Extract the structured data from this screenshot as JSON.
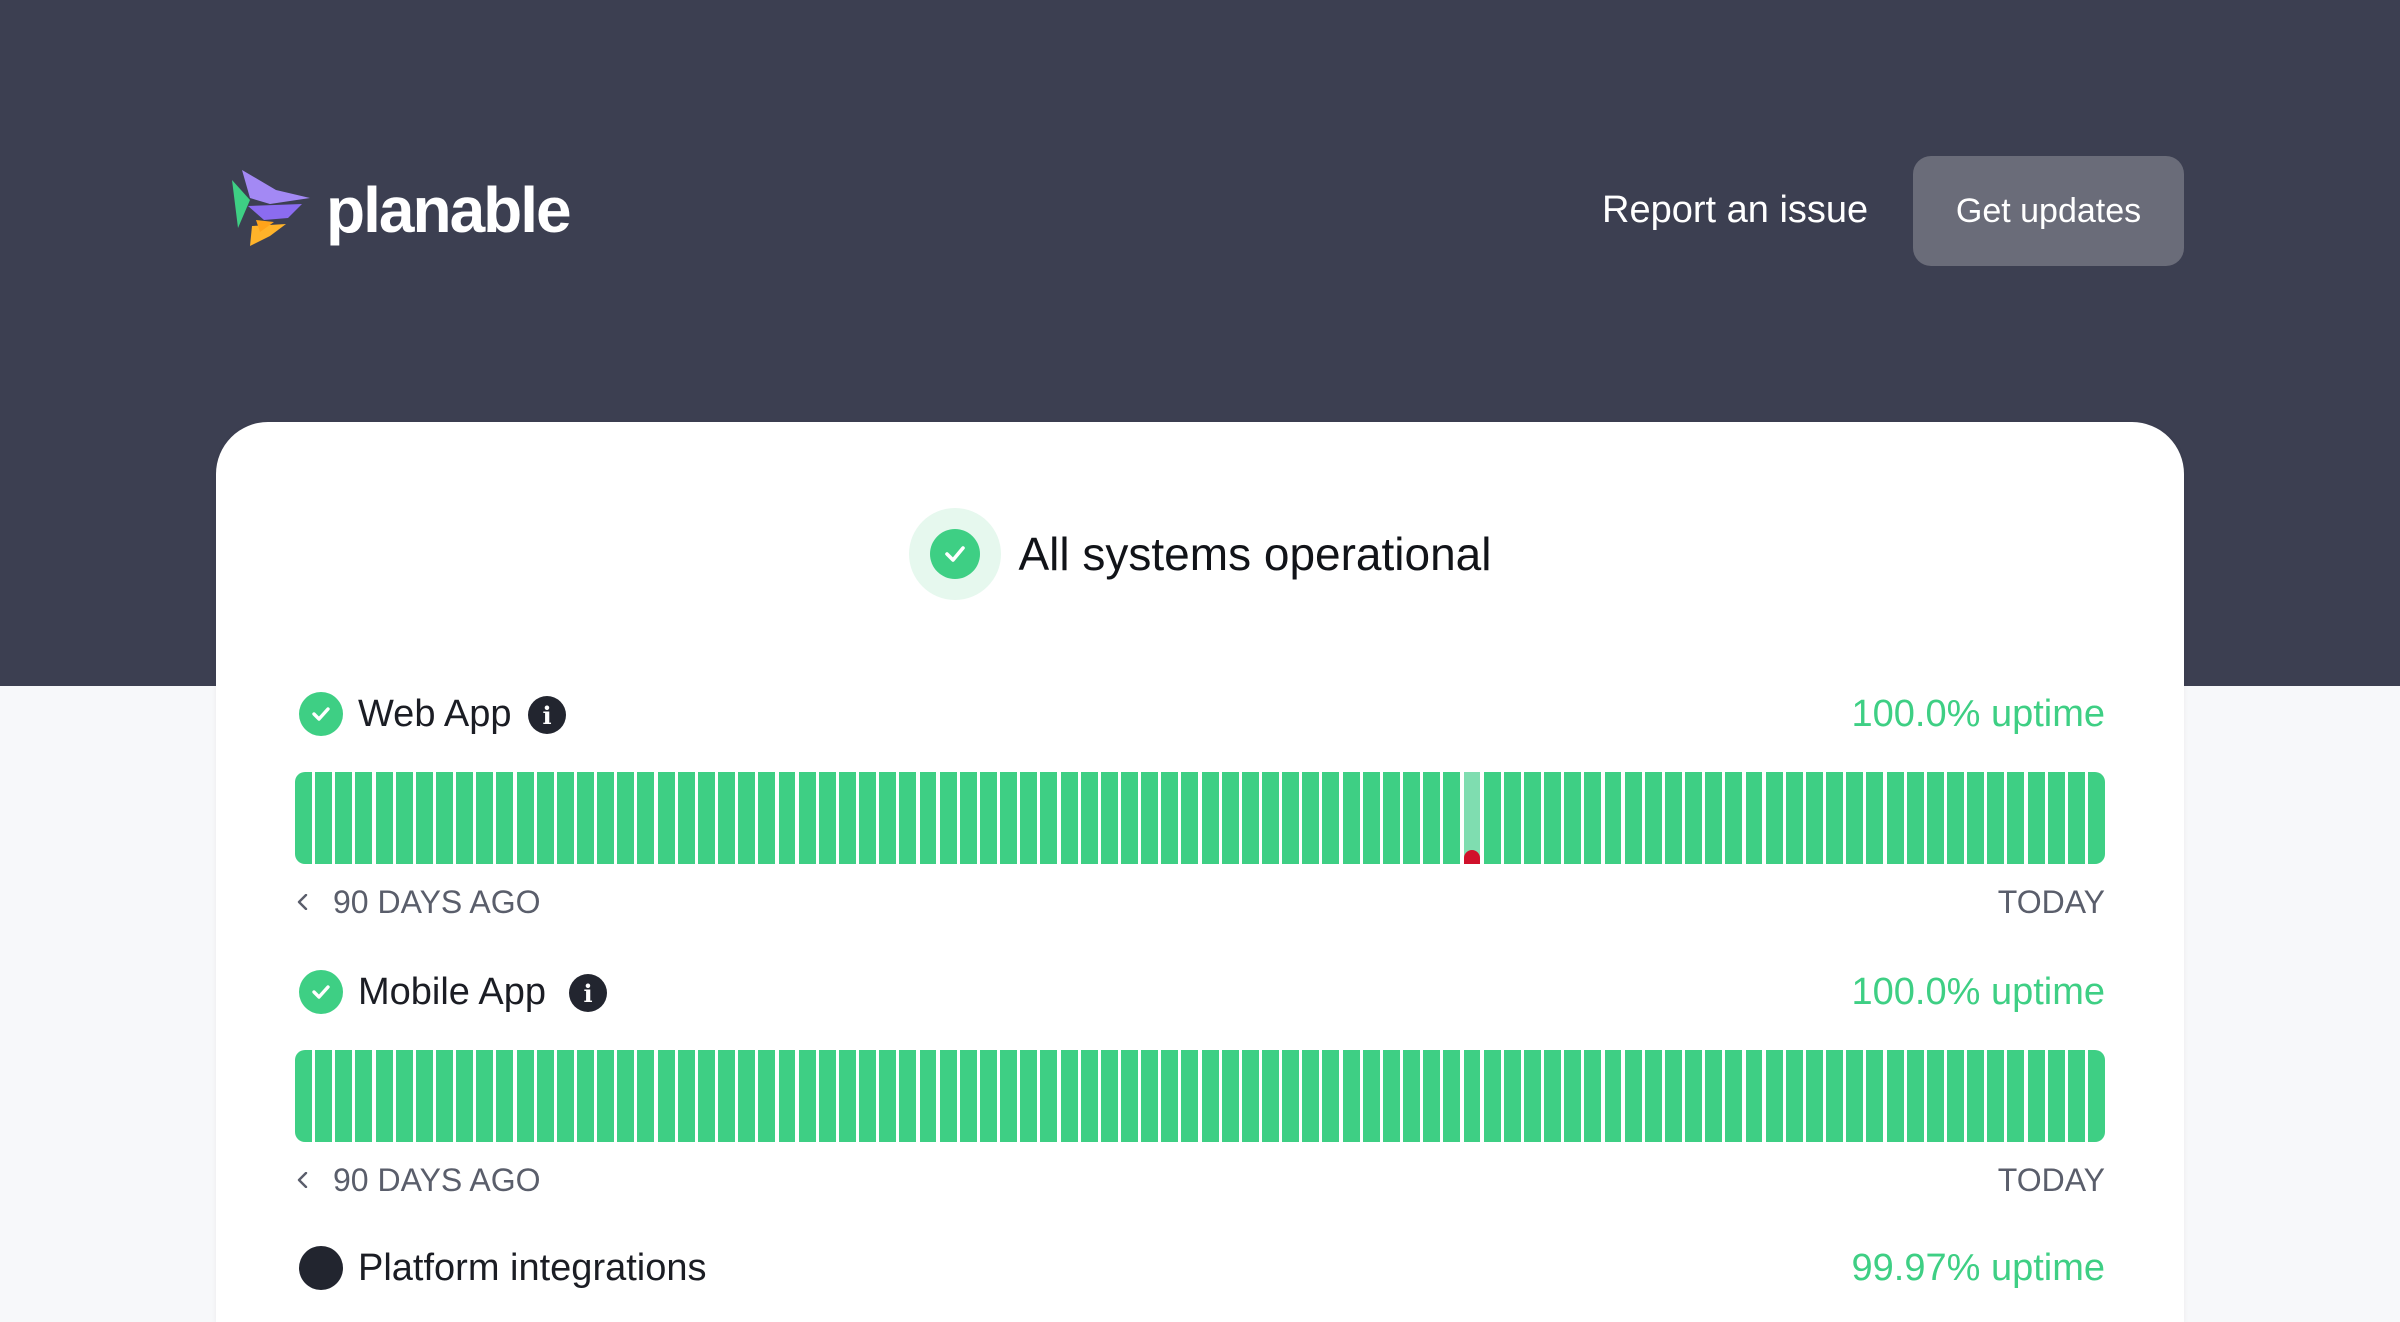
{
  "header": {
    "brand_name": "planable",
    "report_link": "Report an issue",
    "updates_button": "Get updates"
  },
  "overall_status": {
    "text": "All systems operational",
    "icon": "check-circle-icon"
  },
  "components": [
    {
      "name": "Web App",
      "uptime": "100.0% uptime",
      "range_start": "90 DAYS AGO",
      "range_end": "TODAY",
      "days": 90,
      "degraded_day_index": 58,
      "incident_day_index": 58
    },
    {
      "name": "Mobile App",
      "uptime": "100.0% uptime",
      "range_start": "90 DAYS AGO",
      "range_end": "TODAY",
      "days": 90,
      "degraded_day_index": null,
      "incident_day_index": null
    },
    {
      "name": "Platform integrations",
      "uptime": "99.97% uptime"
    }
  ],
  "colors": {
    "hero_bg": "#3c3f51",
    "operational": "#3ecf84",
    "degraded": "#7fddb0",
    "incident": "#d0112b",
    "button_bg": "#6a6c79"
  }
}
